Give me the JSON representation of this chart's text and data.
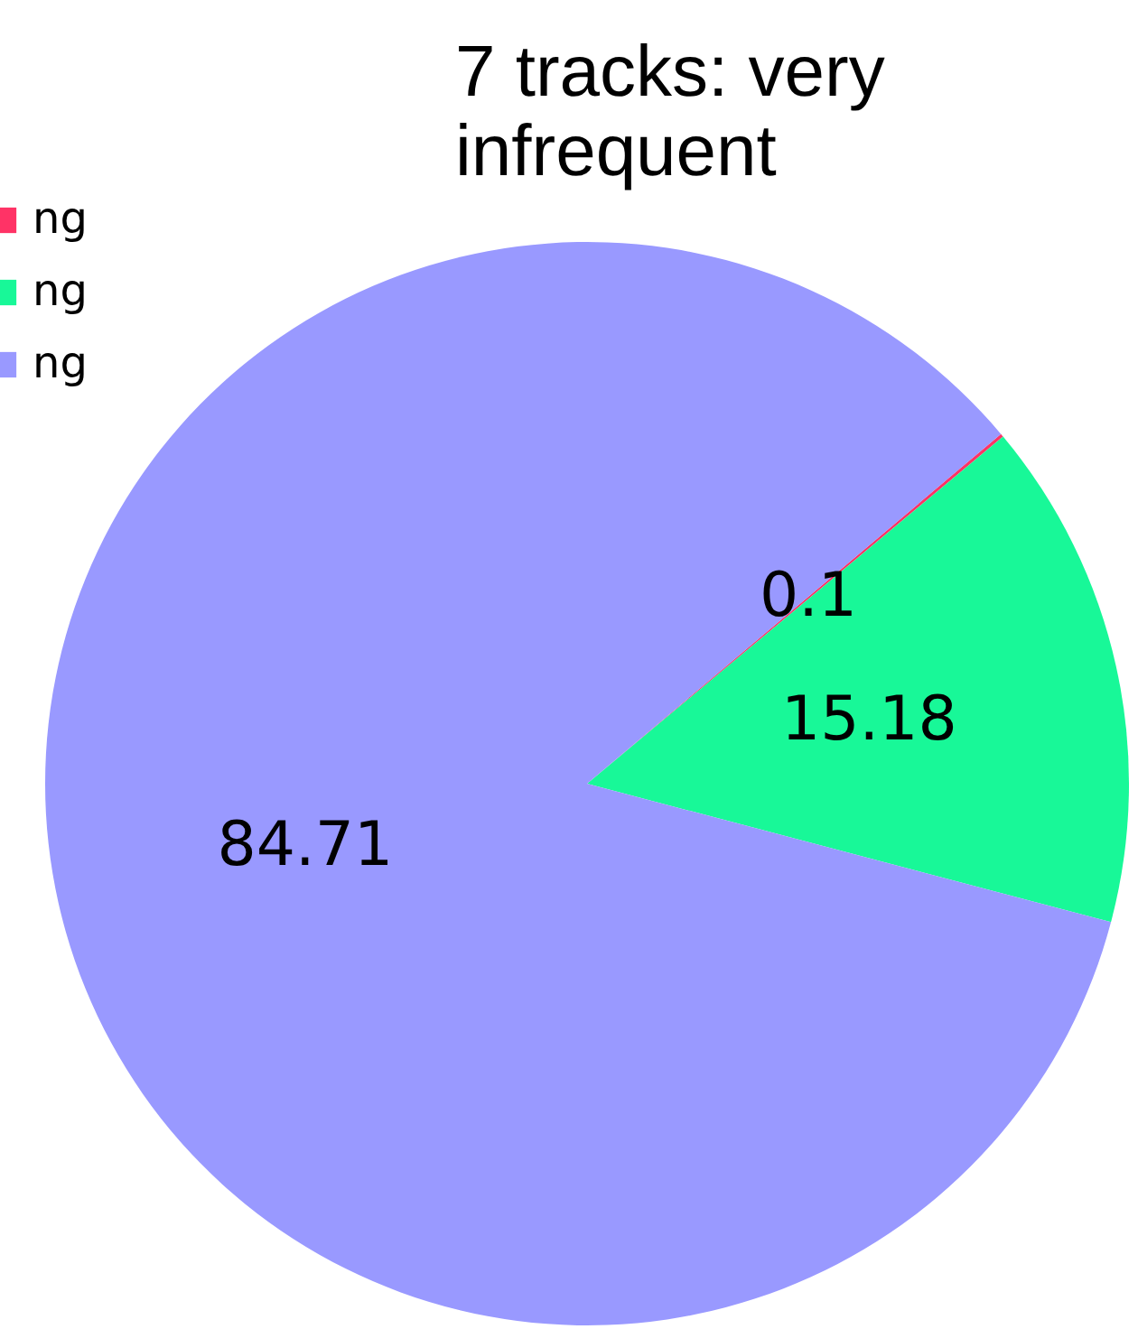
{
  "chart_data": {
    "type": "pie",
    "title": "7 tracks: very infrequent",
    "categories": [
      "ng",
      "ng",
      "ng"
    ],
    "values": [
      0.1,
      15.18,
      84.71
    ],
    "colors": [
      "#ff3366",
      "#18f898",
      "#9999ff"
    ],
    "data_labels": true,
    "legend": "top left"
  }
}
